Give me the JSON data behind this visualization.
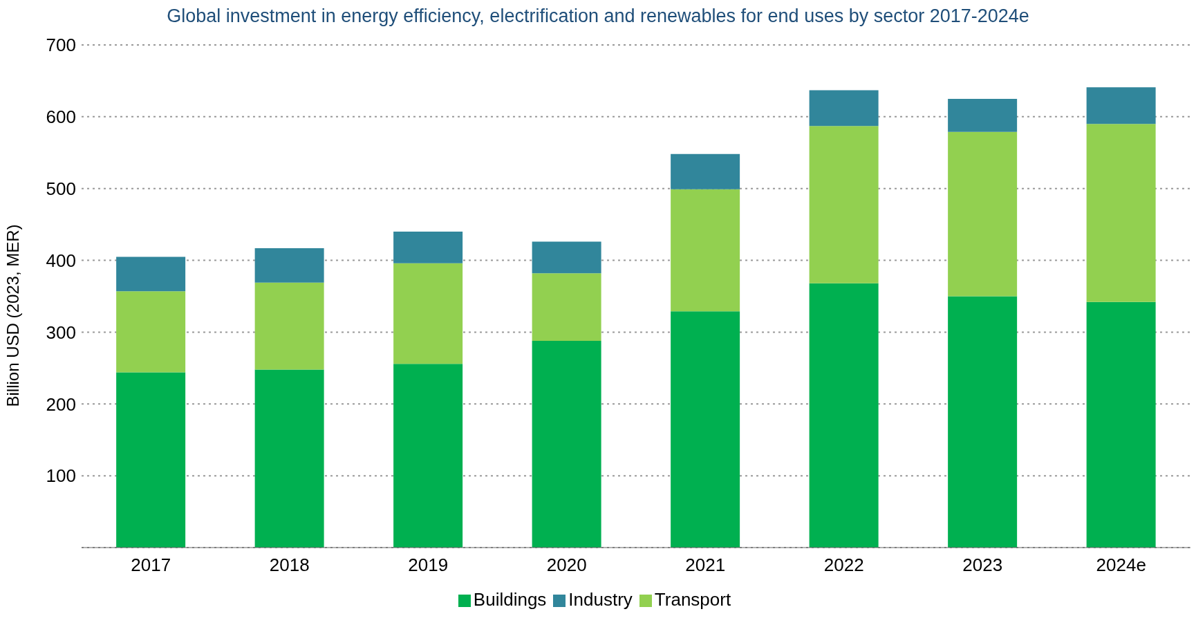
{
  "chart_data": {
    "type": "bar",
    "title": "Global investment in energy efficiency, electrification and renewables for end uses by sector 2017-2024e",
    "ylabel": "Billion USD (2023, MER)",
    "categories": [
      "2017",
      "2018",
      "2019",
      "2020",
      "2021",
      "2022",
      "2023",
      "2024e"
    ],
    "stacked": true,
    "series": [
      {
        "name": "Buildings",
        "color": "#00b050",
        "values": [
          244,
          248,
          256,
          288,
          329,
          368,
          350,
          342
        ]
      },
      {
        "name": "Transport",
        "color": "#92d050",
        "values": [
          113,
          121,
          140,
          94,
          170,
          219,
          229,
          248
        ]
      },
      {
        "name": "Industry",
        "color": "#31869b",
        "values": [
          48,
          48,
          44,
          44,
          49,
          50,
          46,
          51
        ]
      }
    ],
    "ylim": [
      0,
      700
    ],
    "yticks": [
      100,
      200,
      300,
      400,
      500,
      600,
      700
    ],
    "grid": "y",
    "legend": "bottom"
  }
}
